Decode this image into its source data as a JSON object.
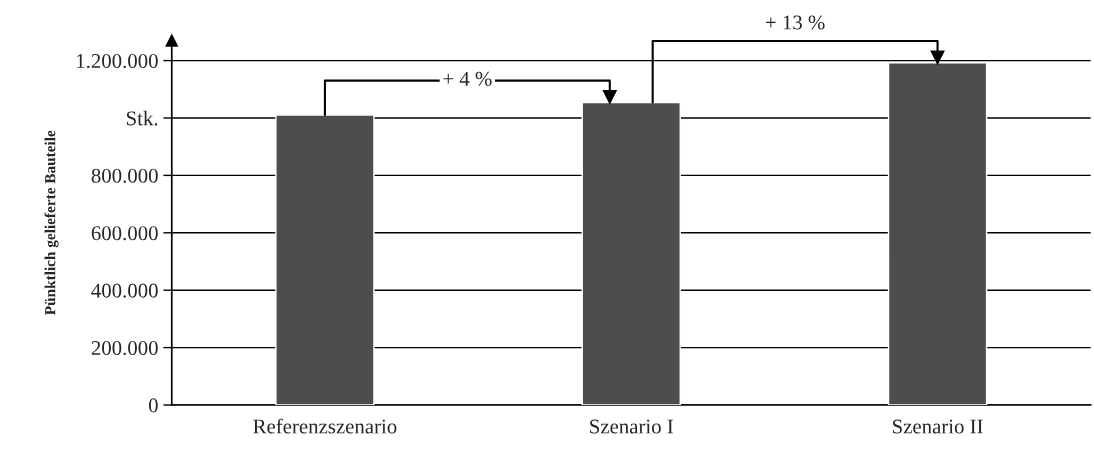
{
  "chart_data": {
    "type": "bar",
    "ylabel": "Pünktlich gelieferte Bauteile",
    "categories": [
      "Referenzszenario",
      "Szenario I",
      "Szenario II"
    ],
    "values": [
      1010000,
      1054000,
      1192000
    ],
    "color": "#4d4d4d",
    "ylim": [
      0,
      1270000
    ],
    "yticks": [
      0,
      {
        "value": 200000,
        "label": "200.000"
      },
      {
        "value": 400000,
        "label": "400.000"
      },
      {
        "value": 600000,
        "label": "600.000"
      },
      {
        "value": 800000,
        "label": "800.000"
      },
      {
        "value": 1000000,
        "label": "Stk."
      },
      {
        "value": 1200000,
        "label": "1.200.000"
      }
    ],
    "grid": "y",
    "annotations": [
      "+ 4 %",
      "+ 13 %"
    ]
  }
}
